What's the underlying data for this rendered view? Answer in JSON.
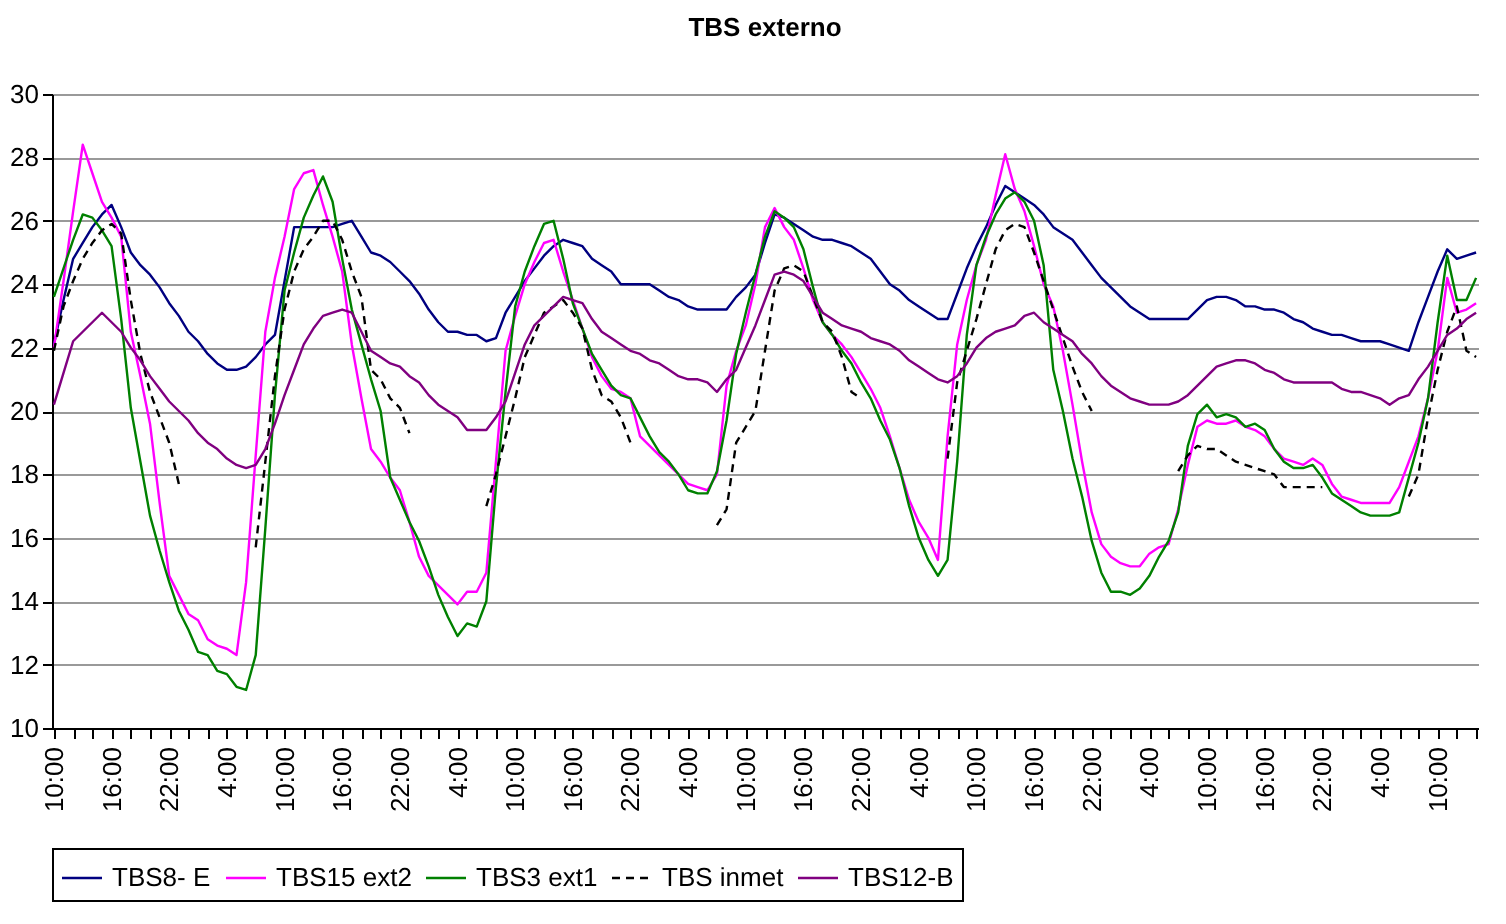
{
  "chart_data": {
    "type": "line",
    "title": "TBS externo",
    "categories": [
      "10:00",
      null,
      null,
      null,
      null,
      null,
      "16:00",
      null,
      null,
      null,
      null,
      null,
      "22:00",
      null,
      null,
      null,
      null,
      null,
      "4:00",
      null,
      null,
      null,
      null,
      null,
      "10:00",
      null,
      null,
      null,
      null,
      null,
      "16:00",
      null,
      null,
      null,
      null,
      null,
      "22:00",
      null,
      null,
      null,
      null,
      null,
      "4:00",
      null,
      null,
      null,
      null,
      null,
      "10:00",
      null,
      null,
      null,
      null,
      null,
      "16:00",
      null,
      null,
      null,
      null,
      null,
      "22:00",
      null,
      null,
      null,
      null,
      null,
      "4:00",
      null,
      null,
      null,
      null,
      null,
      "10:00",
      null,
      null,
      null,
      null,
      null,
      "16:00",
      null,
      null,
      null,
      null,
      null,
      "22:00",
      null,
      null,
      null,
      null,
      null,
      "4:00",
      null,
      null,
      null,
      null,
      null,
      "10:00",
      null,
      null,
      null,
      null,
      null,
      "16:00",
      null,
      null,
      null,
      null,
      null,
      "22:00",
      null,
      null,
      null,
      null,
      null,
      "4:00",
      null,
      null,
      null,
      null,
      null,
      "10:00",
      null,
      null,
      null,
      null,
      null,
      "16:00",
      null,
      null,
      null,
      null,
      null,
      "22:00",
      null,
      null,
      null,
      null,
      null,
      "4:00",
      null,
      null,
      null,
      null,
      null,
      "10:00",
      null,
      null,
      null,
      null
    ],
    "ylim": [
      10,
      30
    ],
    "yticks": [
      10,
      12,
      14,
      16,
      18,
      20,
      22,
      24,
      26,
      28,
      30
    ],
    "grid": "y",
    "legend": "bottom",
    "marker": "none",
    "line_style": "solid",
    "series": [
      {
        "name": "TBS8- E",
        "color": "#000080",
        "values": [
          22.1,
          23.5,
          24.8,
          25.3,
          25.8,
          26.2,
          26.5,
          25.8,
          25.0,
          24.6,
          24.3,
          23.9,
          23.4,
          23.0,
          22.5,
          22.2,
          21.8,
          21.5,
          21.3,
          21.3,
          21.4,
          21.7,
          22.1,
          22.4,
          24.1,
          25.8,
          25.8,
          25.8,
          25.8,
          25.8,
          25.9,
          26.0,
          25.5,
          25.0,
          24.9,
          24.7,
          24.4,
          24.1,
          23.7,
          23.2,
          22.8,
          22.5,
          22.5,
          22.4,
          22.4,
          22.2,
          22.3,
          23.1,
          23.6,
          24.1,
          24.5,
          24.9,
          25.2,
          25.4,
          25.3,
          25.2,
          24.8,
          24.6,
          24.4,
          24.0,
          24.0,
          24.0,
          24.0,
          23.8,
          23.6,
          23.5,
          23.3,
          23.2,
          23.2,
          23.2,
          23.2,
          23.6,
          23.9,
          24.3,
          25.3,
          26.2,
          26.1,
          25.9,
          25.7,
          25.5,
          25.4,
          25.4,
          25.3,
          25.2,
          25.0,
          24.8,
          24.4,
          24.0,
          23.8,
          23.5,
          23.3,
          23.1,
          22.9,
          22.9,
          23.7,
          24.5,
          25.2,
          25.8,
          26.5,
          27.1,
          26.9,
          26.7,
          26.5,
          26.2,
          25.8,
          25.6,
          25.4,
          25.0,
          24.6,
          24.2,
          23.9,
          23.6,
          23.3,
          23.1,
          22.9,
          22.9,
          22.9,
          22.9,
          22.9,
          23.2,
          23.5,
          23.6,
          23.6,
          23.5,
          23.3,
          23.3,
          23.2,
          23.2,
          23.1,
          22.9,
          22.8,
          22.6,
          22.5,
          22.4,
          22.4,
          22.3,
          22.2,
          22.2,
          22.2,
          22.1,
          22.0,
          21.9,
          22.8,
          23.6,
          24.4,
          25.1,
          24.8,
          24.9,
          25.0
        ]
      },
      {
        "name": "TBS15 ext2",
        "color": "#ff00ff",
        "values": [
          22.0,
          24.1,
          26.3,
          28.4,
          27.5,
          26.6,
          26.1,
          25.5,
          22.5,
          21.1,
          19.6,
          17.1,
          14.8,
          14.2,
          13.6,
          13.4,
          12.8,
          12.6,
          12.5,
          12.3,
          14.6,
          18.6,
          22.5,
          24.2,
          25.5,
          27.0,
          27.5,
          27.6,
          26.5,
          25.5,
          24.4,
          22.1,
          20.4,
          18.8,
          18.4,
          17.9,
          17.5,
          16.5,
          15.4,
          14.8,
          14.5,
          14.2,
          13.9,
          14.3,
          14.3,
          14.9,
          18.4,
          21.9,
          23.0,
          24.0,
          24.7,
          25.3,
          25.4,
          24.4,
          23.5,
          22.6,
          21.7,
          21.1,
          20.7,
          20.6,
          20.4,
          19.2,
          18.9,
          18.6,
          18.3,
          18.0,
          17.7,
          17.6,
          17.5,
          18.0,
          20.8,
          21.9,
          22.7,
          24.0,
          25.8,
          26.4,
          25.8,
          25.4,
          24.5,
          23.5,
          22.8,
          22.4,
          22.1,
          21.7,
          21.2,
          20.7,
          20.1,
          19.2,
          18.2,
          17.2,
          16.5,
          16.0,
          15.3,
          19.2,
          22.1,
          23.5,
          24.6,
          25.4,
          26.8,
          28.1,
          27.0,
          26.3,
          25.2,
          24.0,
          23.3,
          21.9,
          20.2,
          18.4,
          16.8,
          15.8,
          15.4,
          15.2,
          15.1,
          15.1,
          15.5,
          15.7,
          15.8,
          16.9,
          18.3,
          19.5,
          19.7,
          19.6,
          19.6,
          19.7,
          19.5,
          19.4,
          19.2,
          18.8,
          18.5,
          18.4,
          18.3,
          18.5,
          18.3,
          17.7,
          17.3,
          17.2,
          17.1,
          17.1,
          17.1,
          17.1,
          17.6,
          18.4,
          19.2,
          20.4,
          21.9,
          24.2,
          23.1,
          23.2,
          23.4
        ]
      },
      {
        "name": "TBS3 ext1",
        "color": "#008000",
        "values": [
          23.6,
          24.5,
          25.4,
          26.2,
          26.1,
          25.7,
          25.2,
          22.9,
          20.1,
          18.4,
          16.7,
          15.6,
          14.6,
          13.7,
          13.1,
          12.4,
          12.3,
          11.8,
          11.7,
          11.3,
          11.2,
          12.3,
          16.3,
          20.5,
          23.8,
          25.0,
          26.1,
          26.8,
          27.4,
          26.6,
          24.8,
          23.2,
          22.1,
          21.0,
          20.0,
          17.9,
          17.2,
          16.5,
          15.9,
          15.1,
          14.2,
          13.5,
          12.9,
          13.3,
          13.2,
          14.0,
          17.6,
          20.6,
          23.3,
          24.4,
          25.2,
          25.9,
          26.0,
          24.8,
          23.4,
          22.6,
          21.8,
          21.3,
          20.8,
          20.5,
          20.4,
          19.8,
          19.2,
          18.7,
          18.4,
          18.0,
          17.5,
          17.4,
          17.4,
          18.1,
          19.7,
          21.8,
          23.1,
          24.3,
          25.5,
          26.3,
          26.1,
          25.8,
          25.1,
          23.9,
          22.8,
          22.4,
          21.9,
          21.5,
          20.9,
          20.4,
          19.7,
          19.1,
          18.2,
          17.0,
          16.0,
          15.3,
          14.8,
          15.3,
          18.4,
          22.4,
          24.6,
          25.5,
          26.2,
          26.7,
          26.9,
          26.6,
          26.0,
          24.6,
          21.3,
          20.0,
          18.5,
          17.3,
          15.9,
          14.9,
          14.3,
          14.3,
          14.2,
          14.4,
          14.8,
          15.4,
          15.9,
          16.8,
          18.9,
          19.9,
          20.2,
          19.8,
          19.9,
          19.8,
          19.5,
          19.6,
          19.4,
          18.8,
          18.4,
          18.2,
          18.2,
          18.3,
          17.9,
          17.4,
          17.2,
          17.0,
          16.8,
          16.7,
          16.7,
          16.7,
          16.8,
          17.9,
          19.0,
          20.4,
          22.8,
          24.9,
          23.5,
          23.5,
          24.2
        ]
      },
      {
        "name": "TBS inmet",
        "color": "#000000",
        "line_style": "dashed",
        "values": [
          21.9,
          23.3,
          24.1,
          24.8,
          25.3,
          25.7,
          25.9,
          25.6,
          23.5,
          21.8,
          20.6,
          19.8,
          19.0,
          17.7,
          null,
          null,
          null,
          null,
          null,
          null,
          null,
          15.7,
          18.4,
          21.1,
          23.2,
          24.4,
          25.1,
          25.5,
          26.0,
          26.0,
          25.4,
          24.4,
          23.6,
          21.3,
          21.0,
          20.4,
          20.1,
          19.3,
          null,
          null,
          null,
          null,
          null,
          null,
          null,
          17.0,
          18.0,
          19.2,
          20.4,
          21.7,
          22.4,
          23.1,
          23.3,
          23.5,
          23.1,
          22.6,
          21.3,
          20.5,
          20.3,
          19.8,
          19.0,
          null,
          null,
          null,
          null,
          null,
          null,
          null,
          null,
          16.4,
          16.9,
          19.0,
          19.5,
          20.0,
          21.9,
          23.8,
          24.5,
          24.6,
          24.4,
          23.6,
          22.8,
          22.5,
          21.7,
          20.6,
          20.4,
          null,
          null,
          null,
          null,
          null,
          null,
          null,
          null,
          18.5,
          20.9,
          21.9,
          22.9,
          24.0,
          25.1,
          25.7,
          25.9,
          25.8,
          25.0,
          24.1,
          23.2,
          22.3,
          21.4,
          20.6,
          20.0,
          null,
          null,
          null,
          null,
          null,
          null,
          null,
          null,
          18.1,
          18.6,
          18.9,
          18.8,
          18.8,
          18.6,
          18.4,
          18.3,
          18.2,
          18.1,
          18.0,
          17.6,
          17.6,
          17.6,
          17.6,
          17.6,
          null,
          null,
          null,
          null,
          null,
          null,
          null,
          null,
          17.3,
          18.0,
          19.8,
          21.3,
          22.5,
          23.3,
          21.9,
          21.7
        ]
      },
      {
        "name": "TBS12-B",
        "color": "#800080",
        "values": [
          20.2,
          21.2,
          22.2,
          22.5,
          22.8,
          23.1,
          22.8,
          22.5,
          22.0,
          21.6,
          21.1,
          20.7,
          20.3,
          20.0,
          19.7,
          19.3,
          19.0,
          18.8,
          18.5,
          18.3,
          18.2,
          18.3,
          18.8,
          19.6,
          20.5,
          21.3,
          22.1,
          22.6,
          23.0,
          23.1,
          23.2,
          23.1,
          22.5,
          21.9,
          21.7,
          21.5,
          21.4,
          21.1,
          20.9,
          20.5,
          20.2,
          20.0,
          19.8,
          19.4,
          19.4,
          19.4,
          19.8,
          20.3,
          21.2,
          22.1,
          22.7,
          23.0,
          23.3,
          23.6,
          23.5,
          23.4,
          22.9,
          22.5,
          22.3,
          22.1,
          21.9,
          21.8,
          21.6,
          21.5,
          21.3,
          21.1,
          21.0,
          21.0,
          20.9,
          20.6,
          21.0,
          21.3,
          22.0,
          22.7,
          23.5,
          24.3,
          24.4,
          24.3,
          24.1,
          23.6,
          23.1,
          22.9,
          22.7,
          22.6,
          22.5,
          22.3,
          22.2,
          22.1,
          21.9,
          21.6,
          21.4,
          21.2,
          21.0,
          20.9,
          21.1,
          21.5,
          22.0,
          22.3,
          22.5,
          22.6,
          22.7,
          23.0,
          23.1,
          22.8,
          22.6,
          22.4,
          22.2,
          21.8,
          21.5,
          21.1,
          20.8,
          20.6,
          20.4,
          20.3,
          20.2,
          20.2,
          20.2,
          20.3,
          20.5,
          20.8,
          21.1,
          21.4,
          21.5,
          21.6,
          21.6,
          21.5,
          21.3,
          21.2,
          21.0,
          20.9,
          20.9,
          20.9,
          20.9,
          20.9,
          20.7,
          20.6,
          20.6,
          20.5,
          20.4,
          20.2,
          20.4,
          20.5,
          21.0,
          21.4,
          21.9,
          22.4,
          22.6,
          22.9,
          23.1
        ]
      }
    ]
  }
}
